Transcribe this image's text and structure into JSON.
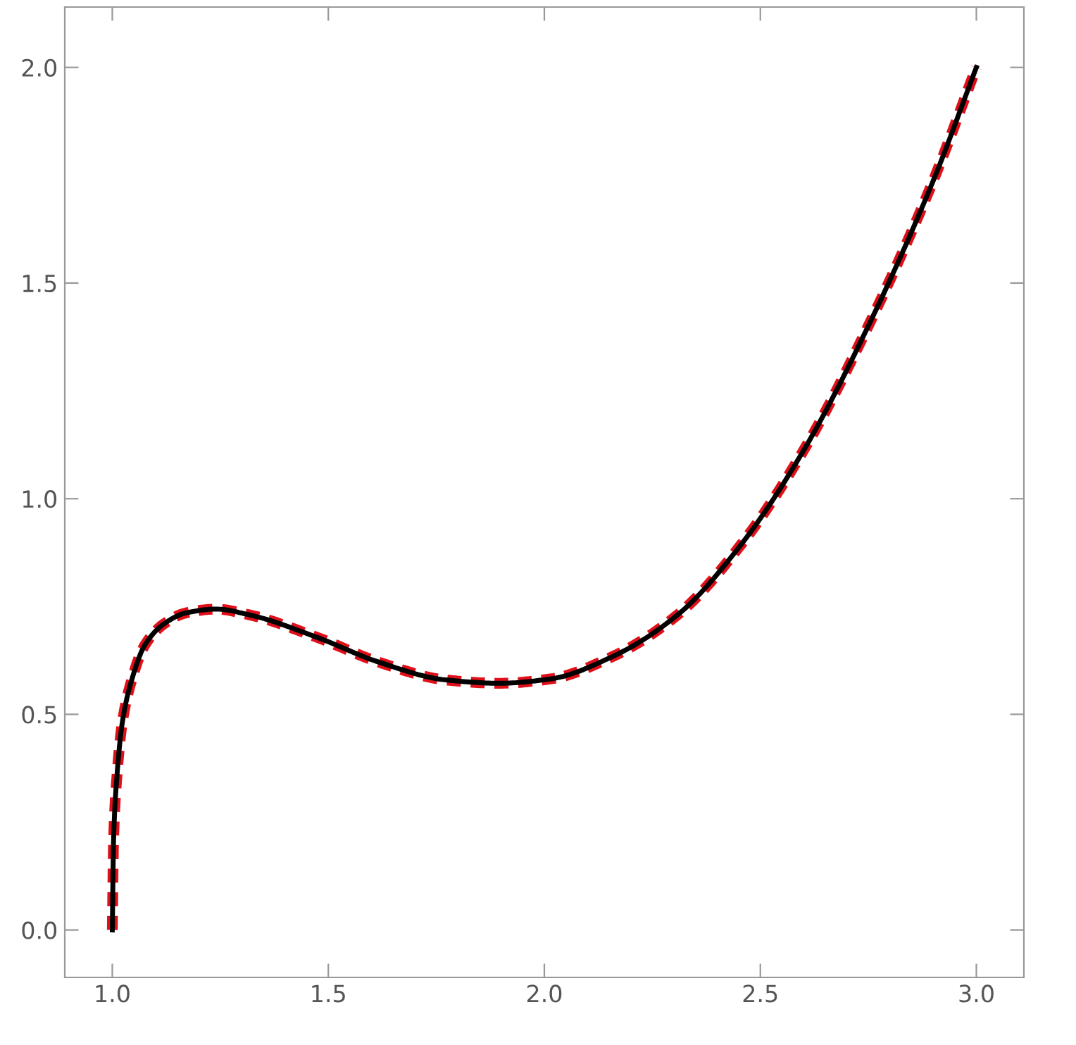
{
  "chart_data": {
    "type": "line",
    "x": [
      1.0,
      1.003,
      1.011,
      1.023,
      1.045,
      1.075,
      1.12,
      1.17,
      1.24,
      1.32,
      1.47,
      1.62,
      1.77,
      1.896,
      2.014,
      2.16,
      2.31,
      2.458,
      2.606,
      2.753,
      2.9,
      3.0
    ],
    "series": [
      {
        "color": "#e0101a",
        "line_style": "dashed",
        "values": [
          0.0,
          0.21,
          0.36,
          0.48,
          0.58,
          0.66,
          0.71,
          0.735,
          0.744,
          0.73,
          0.68,
          0.62,
          0.58,
          0.572,
          0.582,
          0.635,
          0.732,
          0.897,
          1.122,
          1.407,
          1.737,
          2.0
        ]
      },
      {
        "color": "#000000",
        "line_style": "solid",
        "values": [
          0.0,
          0.21,
          0.36,
          0.48,
          0.58,
          0.66,
          0.71,
          0.735,
          0.744,
          0.73,
          0.68,
          0.62,
          0.58,
          0.572,
          0.582,
          0.635,
          0.732,
          0.897,
          1.122,
          1.407,
          1.737,
          2.0
        ]
      }
    ],
    "xlim": [
      0.89,
      3.11
    ],
    "ylim": [
      -0.11,
      2.14
    ],
    "xticks": [
      {
        "value": 1.0,
        "label": "1.0"
      },
      1.5,
      {
        "value": 2.0,
        "label": "2.0"
      },
      2.5,
      {
        "value": 3.0,
        "label": "3.0"
      }
    ],
    "yticks": [
      {
        "value": 0.0,
        "label": "0.0"
      },
      0.5,
      {
        "value": 1.0,
        "label": "1.0"
      },
      1.5,
      {
        "value": 2.0,
        "label": "2.0"
      }
    ],
    "grid": false
  }
}
